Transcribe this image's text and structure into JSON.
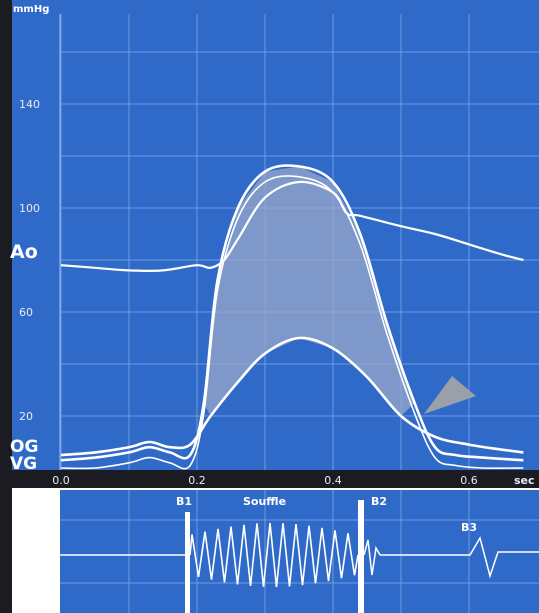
{
  "chart_data": [
    {
      "type": "line",
      "title": "",
      "ylabel": "mmHg",
      "xlabel": "sec",
      "xlim": [
        0.0,
        0.68
      ],
      "ylim": [
        0,
        165
      ],
      "grid": true,
      "x_ticks": [
        "0.0",
        "0.2",
        "0.4",
        "0.6"
      ],
      "y_ticks": [
        "140",
        "100",
        "60",
        "20"
      ],
      "curve_labels": [
        "Ao",
        "OG",
        "VG"
      ],
      "series": [
        {
          "name": "Ao",
          "x": [
            0.0,
            0.05,
            0.1,
            0.15,
            0.2,
            0.22,
            0.24,
            0.26,
            0.3,
            0.35,
            0.4,
            0.42,
            0.44,
            0.5,
            0.55,
            0.6,
            0.65,
            0.68
          ],
          "y": [
            78,
            77,
            76,
            76,
            78,
            77,
            80,
            88,
            104,
            110,
            106,
            98,
            97,
            93,
            90,
            86,
            82,
            80
          ]
        },
        {
          "name": "VG",
          "x": [
            0.0,
            0.05,
            0.1,
            0.13,
            0.16,
            0.19,
            0.21,
            0.23,
            0.26,
            0.3,
            0.35,
            0.4,
            0.44,
            0.48,
            0.52,
            0.55,
            0.58,
            0.62,
            0.68
          ],
          "y": [
            3,
            4,
            6,
            8,
            6,
            5,
            25,
            72,
            100,
            114,
            116,
            110,
            90,
            55,
            25,
            8,
            5,
            4,
            3
          ]
        },
        {
          "name": "OG",
          "x": [
            0.0,
            0.05,
            0.1,
            0.13,
            0.16,
            0.19,
            0.22,
            0.26,
            0.3,
            0.35,
            0.4,
            0.45,
            0.5,
            0.55,
            0.6,
            0.65,
            0.68
          ],
          "y": [
            5,
            6,
            8,
            10,
            8,
            9,
            20,
            33,
            44,
            50,
            46,
            35,
            20,
            12,
            9,
            7,
            6
          ]
        }
      ],
      "annotations": [
        "gradient area between VG and Ao",
        "arrow pointing at VG–OG crossing"
      ]
    },
    {
      "type": "line",
      "title": "",
      "labels": [
        "B1",
        "Souffle",
        "B2",
        "B3"
      ]
    }
  ]
}
